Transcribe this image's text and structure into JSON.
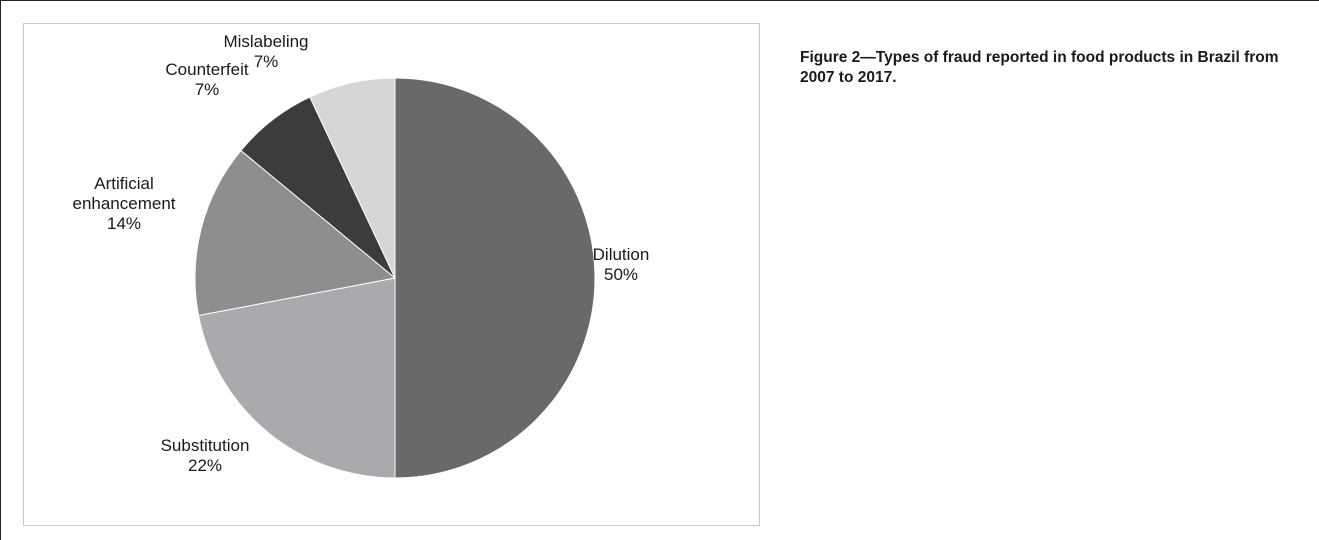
{
  "caption": "Figure 2—Types of fraud reported in food products in Brazil from 2007 to 2017.",
  "chart_data": {
    "type": "pie",
    "title": "",
    "slices": [
      {
        "key": "dilution",
        "name": "Dilution",
        "value": 50,
        "label": "50%",
        "color": "#68696b"
      },
      {
        "key": "substitution",
        "name": "Substitution",
        "value": 22,
        "label": "22%",
        "color": "#a8aaad"
      },
      {
        "key": "artificial-enhancement",
        "name": "Artificial enhancement",
        "name_lines": [
          "Artificial",
          "enhancement"
        ],
        "value": 14,
        "label": "14%",
        "color": "#8d8e90"
      },
      {
        "key": "counterfeit",
        "name": "Counterfeit",
        "value": 7,
        "label": "7%",
        "color": "#3c3c3e"
      },
      {
        "key": "mislabeling",
        "name": "Mislabeling",
        "value": 7,
        "label": "7%",
        "color": "#d5d6d8"
      }
    ],
    "start_angle": "12 o'clock",
    "direction": "clockwise",
    "legend": "none",
    "labels": "outside"
  }
}
